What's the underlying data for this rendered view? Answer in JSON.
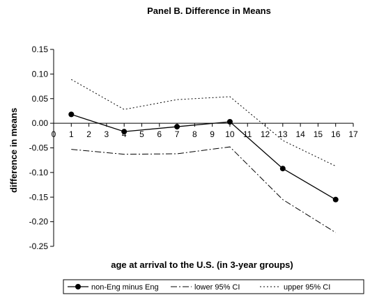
{
  "chart_data": {
    "type": "line",
    "title": "Panel B.  Difference in Means",
    "xlabel": "age at arrival to the U.S. (in 3-year groups)",
    "ylabel": "difference in means",
    "xlim": [
      0,
      17
    ],
    "ylim": [
      -0.25,
      0.15
    ],
    "x_ticks": [
      "0",
      "1",
      "2",
      "3",
      "4",
      "5",
      "6",
      "7",
      "8",
      "9",
      "10",
      "11",
      "12",
      "13",
      "14",
      "15",
      "16",
      "17"
    ],
    "y_ticks": [
      "0.15",
      "0.10",
      "0.05",
      "0.00",
      "-0.05",
      "-0.10",
      "-0.15",
      "-0.20",
      "-0.25"
    ],
    "grid": false,
    "legend_position": "bottom",
    "x": [
      1,
      4,
      7,
      10,
      13,
      16
    ],
    "series": [
      {
        "name": "non-Eng minus Eng",
        "style": "solid-markers",
        "values": [
          0.018,
          -0.017,
          -0.007,
          0.003,
          -0.092,
          -0.155
        ]
      },
      {
        "name": "lower 95% CI",
        "style": "dash-dot",
        "values": [
          -0.053,
          -0.063,
          -0.062,
          -0.048,
          -0.155,
          -0.222
        ]
      },
      {
        "name": "upper 95% CI",
        "style": "dotted",
        "values": [
          0.089,
          0.028,
          0.048,
          0.054,
          -0.035,
          -0.087
        ]
      }
    ]
  }
}
